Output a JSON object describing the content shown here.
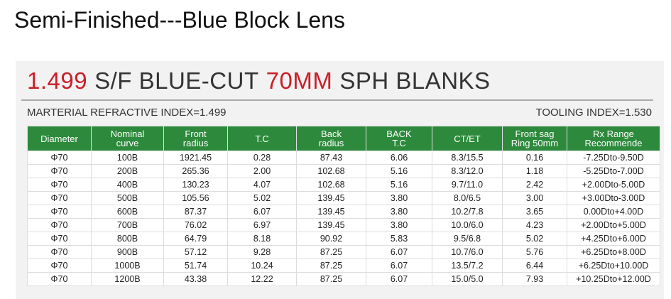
{
  "heading": "Semi-Finished---Blue Block Lens",
  "banner": {
    "title_parts": [
      "1.499",
      "S/F BLUE-CUT",
      "70MM",
      "SPH BLANKS"
    ],
    "left_note": "MARTERIAL REFRACTIVE INDEX=1.499",
    "right_note": "TOOLING INDEX=1.530"
  },
  "table": {
    "columns": [
      [
        "Diameter"
      ],
      [
        "Nominal",
        "curve"
      ],
      [
        "Front",
        "radius"
      ],
      [
        "T.C"
      ],
      [
        "Back",
        "radius"
      ],
      [
        "BACK",
        "T.C"
      ],
      [
        "CT/ET"
      ],
      [
        "Front sag",
        "Ring 50mm"
      ],
      [
        "Rx Range",
        "Recommende"
      ]
    ],
    "rows": [
      [
        "Φ70",
        "100B",
        "1921.45",
        "0.28",
        "87.43",
        "6.06",
        "8.3/15.5",
        "0.16",
        "-7.25Dto-9.50D"
      ],
      [
        "Φ70",
        "200B",
        "265.36",
        "2.00",
        "102.68",
        "5.16",
        "8.3/12.0",
        "1.18",
        "-5.25Dto-7.00D"
      ],
      [
        "Φ70",
        "400B",
        "130.23",
        "4.07",
        "102.68",
        "5.16",
        "9.7/11.0",
        "2.42",
        "+2.00Dto-5.00D"
      ],
      [
        "Φ70",
        "500B",
        "105.56",
        "5.02",
        "139.45",
        "3.80",
        "8.0/6.5",
        "3.00",
        "+3.00Dto-3.00D"
      ],
      [
        "Φ70",
        "600B",
        "87.37",
        "6.07",
        "139.45",
        "3.80",
        "10.2/7.8",
        "3.65",
        "0.00Dto+4.00D"
      ],
      [
        "Φ70",
        "700B",
        "76.02",
        "6.97",
        "139.45",
        "3.80",
        "10.0/6.0",
        "4.23",
        "+2.00Dto+5.00D"
      ],
      [
        "Φ70",
        "800B",
        "64.79",
        "8.18",
        "90.92",
        "5.83",
        "9.5/6.8",
        "5.02",
        "+4.25Dto+6.00D"
      ],
      [
        "Φ70",
        "900B",
        "57.12",
        "9.28",
        "87.25",
        "6.07",
        "10.7/6.0",
        "5.76",
        "+6.25Dto+8.00D"
      ],
      [
        "Φ70",
        "1000B",
        "51.74",
        "10.24",
        "87.25",
        "6.07",
        "13.5/7.2",
        "6.44",
        "+6.25Dto+10.00D"
      ],
      [
        "Φ70",
        "1200B",
        "43.38",
        "12.22",
        "87.25",
        "6.07",
        "15.0/5.0",
        "7.93",
        "+10.25Dto+12.00D"
      ]
    ]
  }
}
